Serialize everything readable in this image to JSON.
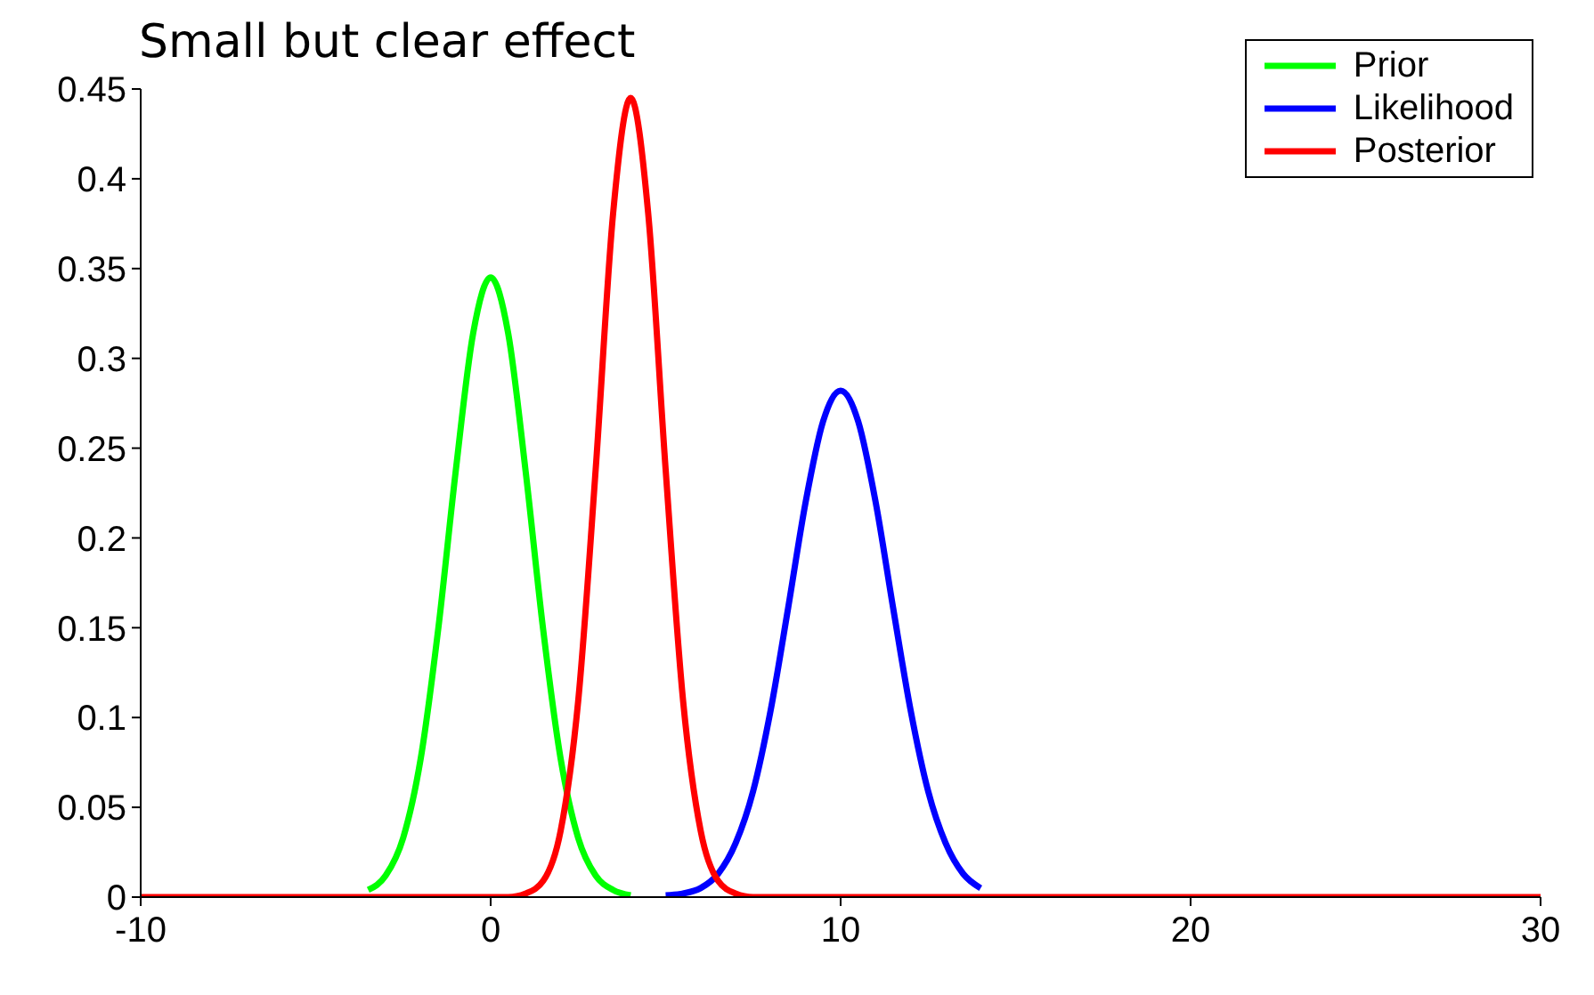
{
  "chart_data": {
    "type": "line",
    "title": "Small but clear effect",
    "series": [
      {
        "name": "Prior",
        "color": "#00ff00",
        "x": [
          -3.5,
          -3,
          -2.5,
          -2,
          -1.5,
          -1,
          -0.5,
          0,
          0.5,
          1,
          1.5,
          2,
          2.5,
          3,
          3.5,
          4
        ],
        "values": [
          0.004,
          0.012,
          0.033,
          0.077,
          0.149,
          0.237,
          0.314,
          0.345,
          0.314,
          0.237,
          0.149,
          0.077,
          0.033,
          0.012,
          0.004,
          0.001
        ]
      },
      {
        "name": "Likelihood",
        "color": "#0000ff",
        "x": [
          5,
          5.5,
          6,
          6.5,
          7,
          7.5,
          8,
          8.5,
          9,
          9.5,
          10,
          10.5,
          11,
          11.5,
          12,
          12.5,
          13,
          13.5,
          14
        ],
        "values": [
          0.001,
          0.002,
          0.005,
          0.013,
          0.03,
          0.059,
          0.104,
          0.161,
          0.22,
          0.265,
          0.282,
          0.265,
          0.22,
          0.161,
          0.104,
          0.059,
          0.03,
          0.013,
          0.005
        ]
      },
      {
        "name": "Posterior",
        "color": "#ff0000",
        "x": [
          -10,
          -5,
          0,
          0.5,
          1,
          1.5,
          2,
          2.5,
          3,
          3.5,
          4,
          4.5,
          5,
          5.5,
          6,
          6.5,
          7,
          7.5,
          8,
          15,
          20,
          30
        ],
        "values": [
          0,
          0,
          0,
          0,
          0.002,
          0.009,
          0.037,
          0.109,
          0.238,
          0.381,
          0.445,
          0.381,
          0.238,
          0.109,
          0.037,
          0.009,
          0.002,
          0,
          0,
          0,
          0,
          0
        ]
      }
    ],
    "xlim": [
      -10,
      30
    ],
    "xticks": [
      -10,
      0,
      10,
      20,
      30
    ],
    "ylim": [
      0,
      0.45
    ],
    "yticks": [
      0,
      0.05,
      0.1,
      0.15,
      0.2,
      0.25,
      0.3,
      0.35,
      0.4,
      0.45
    ],
    "legend": "top right",
    "marker": "none",
    "line_style": "solid"
  }
}
